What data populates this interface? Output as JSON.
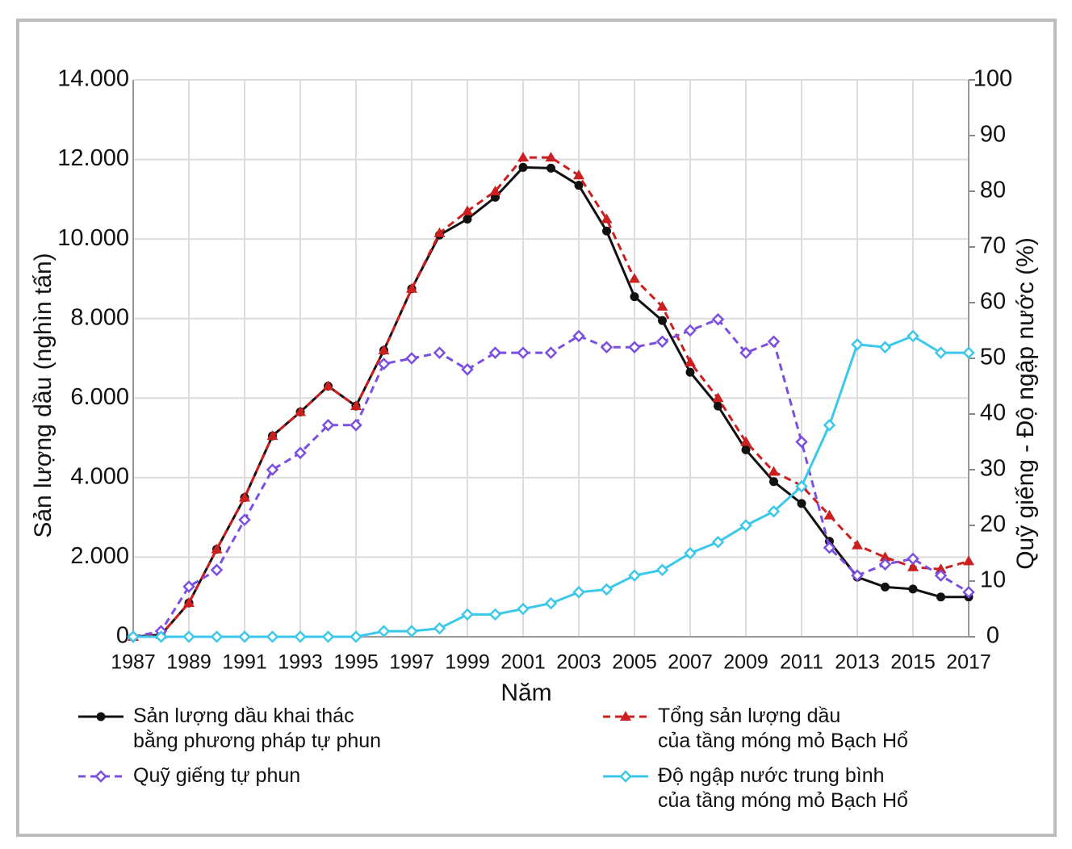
{
  "chart_data": {
    "type": "line",
    "x_label": "Năm",
    "y_label": "Sản lượng dầu (nghìn tấn)",
    "y2_label": "Quỹ giếng - Độ ngập nước (%)",
    "x": [
      1987,
      1988,
      1989,
      1990,
      1991,
      1992,
      1993,
      1994,
      1995,
      1996,
      1997,
      1998,
      1999,
      2000,
      2001,
      2002,
      2003,
      2004,
      2005,
      2006,
      2007,
      2008,
      2009,
      2010,
      2011,
      2012,
      2013,
      2014,
      2015,
      2016,
      2017
    ],
    "xlim": [
      1987,
      2017
    ],
    "xticks": [
      1987,
      1989,
      1991,
      1993,
      1995,
      1997,
      1999,
      2001,
      2003,
      2005,
      2007,
      2009,
      2011,
      2013,
      2015,
      2017
    ],
    "ylim": [
      0,
      14000
    ],
    "yticks": [
      0,
      {
        "value": 2000,
        "label": "2.000"
      },
      {
        "value": 4000,
        "label": "4.000"
      },
      {
        "value": 6000,
        "label": "6.000"
      },
      {
        "value": 8000,
        "label": "8.000"
      },
      {
        "value": 10000,
        "label": "10.000"
      },
      {
        "value": 12000,
        "label": "12.000"
      },
      {
        "value": 14000,
        "label": "14.000"
      }
    ],
    "y2lim": [
      0,
      100
    ],
    "y2ticks": [
      0,
      10,
      20,
      30,
      40,
      50,
      60,
      70,
      80,
      90,
      100
    ],
    "grid": true,
    "series": [
      {
        "name": "Sản lượng dầu khai thác\nbằng phương pháp tự phun",
        "color": "#111111",
        "marker": "circle",
        "dash": false,
        "values": [
          0,
          50,
          850,
          2200,
          3500,
          5050,
          5650,
          6300,
          5800,
          7200,
          8750,
          10100,
          10500,
          11050,
          11800,
          11780,
          11350,
          10200,
          8550,
          7950,
          6650,
          5800,
          4700,
          3900,
          3350,
          2400,
          1500,
          1250,
          1200,
          1000,
          1000
        ]
      },
      {
        "name": "Tổng sản lượng dầu\ncủa tầng móng mỏ Bạch Hổ",
        "color": "#cc1f1f",
        "marker": "triangle",
        "dash": true,
        "values": [
          0,
          50,
          850,
          2200,
          3500,
          5050,
          5650,
          6300,
          5800,
          7200,
          8750,
          10150,
          10700,
          11200,
          12050,
          12050,
          11600,
          10500,
          9000,
          8300,
          6900,
          6000,
          4900,
          4150,
          3800,
          3050,
          2300,
          2000,
          1750,
          1700,
          1900
        ]
      },
      {
        "name": "Quỹ giếng tự phun",
        "color": "#7b4fe0",
        "marker": "diamond",
        "dash": true,
        "axis": "y2",
        "values": [
          0,
          1,
          9,
          12,
          21,
          30,
          33,
          38,
          38,
          49,
          50,
          51,
          48,
          51,
          51,
          51,
          54,
          52,
          52,
          53,
          55,
          57,
          51,
          53,
          35,
          16,
          11,
          13,
          14,
          11,
          8
        ]
      },
      {
        "name": "Độ ngập nước trung bình\ncủa tầng móng mỏ Bạch Hổ",
        "color": "#3cc8ea",
        "marker": "diamond",
        "dash": false,
        "axis": "y2",
        "values": [
          0,
          0,
          0,
          0,
          0,
          0,
          0,
          0,
          0,
          1,
          1,
          1.5,
          4,
          4,
          5,
          6,
          8,
          8.5,
          11,
          12,
          15,
          17,
          20,
          22.5,
          27,
          38,
          52.5,
          52,
          54,
          51,
          51
        ]
      }
    ]
  }
}
